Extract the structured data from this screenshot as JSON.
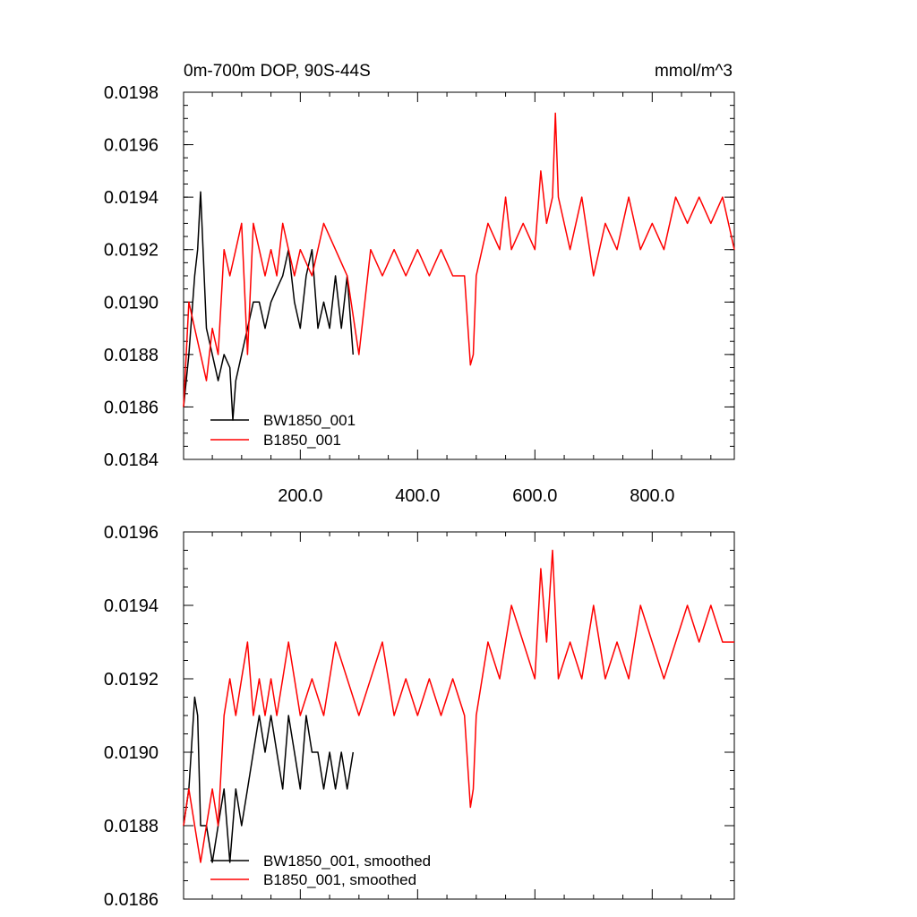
{
  "colors": {
    "bw": "#000000",
    "b": "#ff0000"
  },
  "chart_data": [
    {
      "type": "line",
      "title": "0m-700m DOP, 90S-44S",
      "units": "mmol/m^3",
      "xlim": [
        1,
        940
      ],
      "ylim": [
        0.0184,
        0.0198
      ],
      "x_ticks": [
        200,
        400,
        600,
        800
      ],
      "x_tick_labels": [
        "200.0",
        "400.0",
        "600.0",
        "800.0"
      ],
      "y_ticks": [
        0.0184,
        0.0186,
        0.0188,
        0.019,
        0.0192,
        0.0194,
        0.0196,
        0.0198
      ],
      "y_tick_labels": [
        "0.0184",
        "0.0186",
        "0.0188",
        "0.0190",
        "0.0192",
        "0.0194",
        "0.0196",
        "0.0198"
      ],
      "legend": [
        "BW1850_001",
        "B1850_001"
      ],
      "legend_position": "bottom-left",
      "series": [
        {
          "name": "BW1850_001",
          "color": "#000000",
          "x": [
            1,
            10,
            20,
            25,
            30,
            40,
            50,
            60,
            70,
            80,
            85,
            90,
            100,
            110,
            120,
            130,
            140,
            150,
            160,
            170,
            180,
            190,
            200,
            210,
            220,
            230,
            240,
            250,
            260,
            270,
            280,
            290
          ],
          "y": [
            0.0186,
            0.0188,
            0.0191,
            0.0192,
            0.01942,
            0.0189,
            0.0188,
            0.0187,
            0.0188,
            0.01875,
            0.01855,
            0.0187,
            0.0188,
            0.0189,
            0.019,
            0.019,
            0.0189,
            0.019,
            0.01905,
            0.0191,
            0.0192,
            0.019,
            0.0189,
            0.0191,
            0.0192,
            0.0189,
            0.019,
            0.0189,
            0.0191,
            0.0189,
            0.0191,
            0.0188
          ]
        },
        {
          "name": "B1850_001",
          "color": "#ff0000",
          "x": [
            1,
            10,
            20,
            30,
            40,
            50,
            60,
            70,
            80,
            90,
            100,
            110,
            120,
            130,
            140,
            150,
            160,
            170,
            180,
            190,
            200,
            220,
            240,
            260,
            280,
            300,
            320,
            340,
            360,
            380,
            400,
            420,
            440,
            460,
            480,
            490,
            495,
            500,
            520,
            540,
            550,
            560,
            580,
            600,
            610,
            620,
            630,
            635,
            640,
            660,
            680,
            700,
            720,
            740,
            760,
            780,
            800,
            820,
            840,
            860,
            880,
            900,
            920,
            930,
            940
          ],
          "y": [
            0.0186,
            0.019,
            0.0189,
            0.0188,
            0.0187,
            0.0189,
            0.0188,
            0.0192,
            0.0191,
            0.0192,
            0.0193,
            0.0188,
            0.0193,
            0.0192,
            0.0191,
            0.0192,
            0.0191,
            0.0193,
            0.0192,
            0.0191,
            0.0192,
            0.0191,
            0.0193,
            0.0192,
            0.0191,
            0.0188,
            0.0192,
            0.0191,
            0.0192,
            0.0191,
            0.0192,
            0.0191,
            0.0192,
            0.0191,
            0.0191,
            0.01876,
            0.0188,
            0.0191,
            0.0193,
            0.0192,
            0.0194,
            0.0192,
            0.0193,
            0.0192,
            0.0195,
            0.0193,
            0.0194,
            0.01972,
            0.0194,
            0.0192,
            0.0194,
            0.0191,
            0.0193,
            0.0192,
            0.0194,
            0.0192,
            0.0193,
            0.0192,
            0.0194,
            0.0193,
            0.0194,
            0.0193,
            0.0194,
            0.0193,
            0.0192
          ]
        }
      ]
    },
    {
      "type": "line",
      "xlim": [
        1,
        940
      ],
      "ylim": [
        0.0186,
        0.0196
      ],
      "x_ticks": [
        200,
        400,
        600,
        800
      ],
      "y_ticks": [
        0.0186,
        0.0188,
        0.019,
        0.0192,
        0.0194,
        0.0196
      ],
      "y_tick_labels": [
        "0.0186",
        "0.0188",
        "0.0190",
        "0.0192",
        "0.0194",
        "0.0196"
      ],
      "legend": [
        "BW1850_001, smoothed",
        "B1850_001, smoothed"
      ],
      "legend_position": "bottom-left",
      "series": [
        {
          "name": "BW1850_001, smoothed",
          "color": "#000000",
          "x": [
            1,
            10,
            20,
            25,
            30,
            40,
            50,
            60,
            70,
            80,
            90,
            100,
            110,
            120,
            130,
            140,
            150,
            160,
            170,
            180,
            190,
            200,
            210,
            220,
            230,
            240,
            250,
            260,
            270,
            280,
            290
          ],
          "y": [
            0.0188,
            0.0189,
            0.01915,
            0.0191,
            0.0188,
            0.0188,
            0.0187,
            0.0188,
            0.0189,
            0.0187,
            0.0189,
            0.0188,
            0.0189,
            0.019,
            0.0191,
            0.019,
            0.0191,
            0.019,
            0.0189,
            0.0191,
            0.019,
            0.0189,
            0.0191,
            0.019,
            0.019,
            0.0189,
            0.019,
            0.0189,
            0.019,
            0.0189,
            0.019
          ]
        },
        {
          "name": "B1850_001, smoothed",
          "color": "#ff0000",
          "x": [
            1,
            10,
            20,
            30,
            40,
            50,
            60,
            70,
            80,
            90,
            100,
            110,
            120,
            130,
            140,
            150,
            160,
            170,
            180,
            190,
            200,
            220,
            240,
            260,
            280,
            300,
            320,
            340,
            360,
            380,
            400,
            420,
            440,
            460,
            480,
            490,
            495,
            500,
            520,
            540,
            560,
            580,
            600,
            610,
            620,
            630,
            640,
            660,
            680,
            700,
            720,
            740,
            760,
            780,
            800,
            820,
            840,
            860,
            880,
            900,
            920,
            940
          ],
          "y": [
            0.0188,
            0.0189,
            0.0188,
            0.0187,
            0.0188,
            0.0189,
            0.0188,
            0.0191,
            0.0192,
            0.0191,
            0.0192,
            0.0193,
            0.0191,
            0.0192,
            0.0191,
            0.0192,
            0.0191,
            0.0192,
            0.0193,
            0.0192,
            0.0191,
            0.0192,
            0.0191,
            0.0193,
            0.0192,
            0.0191,
            0.0192,
            0.0193,
            0.0191,
            0.0192,
            0.0191,
            0.0192,
            0.0191,
            0.0192,
            0.0191,
            0.01885,
            0.0189,
            0.0191,
            0.0193,
            0.0192,
            0.0194,
            0.0193,
            0.0192,
            0.0195,
            0.0193,
            0.01955,
            0.0192,
            0.0193,
            0.0192,
            0.0194,
            0.0192,
            0.0193,
            0.0192,
            0.0194,
            0.0193,
            0.0192,
            0.0193,
            0.0194,
            0.0193,
            0.0194,
            0.0193,
            0.0193
          ]
        }
      ]
    }
  ]
}
